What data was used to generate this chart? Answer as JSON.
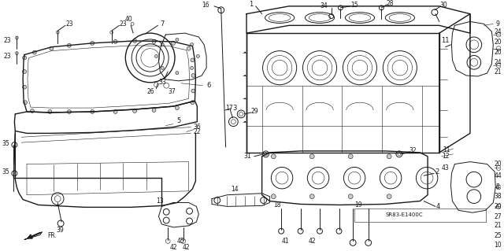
{
  "background_color": "#f0f0f0",
  "line_color": "#1a1a1a",
  "diagram_code": "SR83-E1400C",
  "figsize": [
    6.4,
    3.19
  ],
  "dpi": 100,
  "img_gamma": 0.85
}
